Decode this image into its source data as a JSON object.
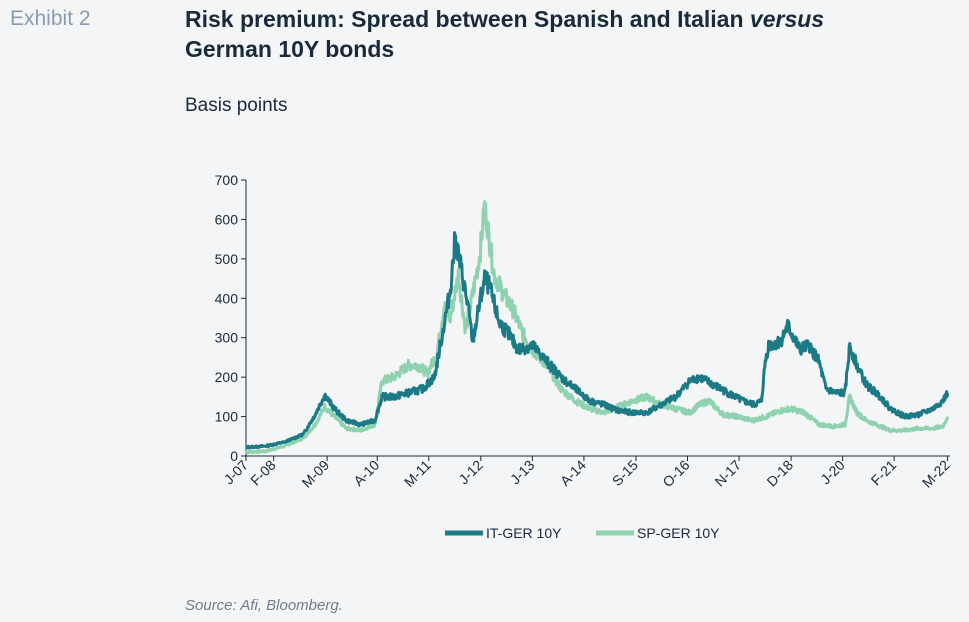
{
  "header": {
    "exhibit": "Exhibit 2",
    "title_main": "Risk premium: Spread between Spanish and Italian ",
    "title_italic": "versus",
    "title_end": "German 10Y bonds",
    "subtitle": "Basis points"
  },
  "source": "Source: Afi, Bloomberg.",
  "colors": {
    "it": "#1b7a86",
    "sp": "#8ed2b0",
    "axis": "#1a2a3c"
  },
  "chart_data": {
    "type": "line",
    "title": "Risk premium: Spread between Spanish and Italian versus German 10Y bonds",
    "ylabel": "Basis points",
    "ylim": [
      0,
      700
    ],
    "yticks": [
      0,
      100,
      200,
      300,
      400,
      500,
      600,
      700
    ],
    "xlim": [
      2007.5,
      2022.25
    ],
    "xticks": [
      {
        "label": "J-07",
        "x": 2007.5
      },
      {
        "label": "F-08",
        "x": 2008.08
      },
      {
        "label": "M-09",
        "x": 2009.2
      },
      {
        "label": "A-10",
        "x": 2010.25
      },
      {
        "label": "M-11",
        "x": 2011.33
      },
      {
        "label": "J-12",
        "x": 2012.42
      },
      {
        "label": "J-13",
        "x": 2013.5
      },
      {
        "label": "A-14",
        "x": 2014.58
      },
      {
        "label": "S-15",
        "x": 2015.67
      },
      {
        "label": "O-16",
        "x": 2016.75
      },
      {
        "label": "N-17",
        "x": 2017.83
      },
      {
        "label": "D-18",
        "x": 2018.92
      },
      {
        "label": "J-20",
        "x": 2020.0
      },
      {
        "label": "F-21",
        "x": 2021.08
      },
      {
        "label": "M-22",
        "x": 2022.2
      }
    ],
    "legend_position": "bottom",
    "series": [
      {
        "name": "IT-GER 10Y",
        "points": [
          [
            2007.5,
            22
          ],
          [
            2007.9,
            25
          ],
          [
            2008.3,
            35
          ],
          [
            2008.7,
            55
          ],
          [
            2008.95,
            105
          ],
          [
            2009.15,
            155
          ],
          [
            2009.35,
            120
          ],
          [
            2009.6,
            90
          ],
          [
            2009.9,
            80
          ],
          [
            2010.2,
            90
          ],
          [
            2010.35,
            150
          ],
          [
            2010.6,
            150
          ],
          [
            2010.9,
            160
          ],
          [
            2011.2,
            170
          ],
          [
            2011.45,
            200
          ],
          [
            2011.6,
            300
          ],
          [
            2011.78,
            420
          ],
          [
            2011.88,
            550
          ],
          [
            2012.0,
            480
          ],
          [
            2012.15,
            380
          ],
          [
            2012.25,
            290
          ],
          [
            2012.4,
            390
          ],
          [
            2012.5,
            450
          ],
          [
            2012.6,
            430
          ],
          [
            2012.8,
            340
          ],
          [
            2013.0,
            310
          ],
          [
            2013.2,
            270
          ],
          [
            2013.5,
            280
          ],
          [
            2013.8,
            240
          ],
          [
            2014.1,
            200
          ],
          [
            2014.4,
            170
          ],
          [
            2014.7,
            140
          ],
          [
            2015.0,
            130
          ],
          [
            2015.3,
            115
          ],
          [
            2015.6,
            110
          ],
          [
            2015.9,
            110
          ],
          [
            2016.2,
            130
          ],
          [
            2016.5,
            150
          ],
          [
            2016.8,
            190
          ],
          [
            2017.0,
            200
          ],
          [
            2017.3,
            180
          ],
          [
            2017.6,
            160
          ],
          [
            2017.9,
            140
          ],
          [
            2018.15,
            130
          ],
          [
            2018.3,
            140
          ],
          [
            2018.38,
            240
          ],
          [
            2018.45,
            280
          ],
          [
            2018.7,
            290
          ],
          [
            2018.85,
            330
          ],
          [
            2019.1,
            270
          ],
          [
            2019.3,
            280
          ],
          [
            2019.5,
            240
          ],
          [
            2019.65,
            170
          ],
          [
            2019.85,
            160
          ],
          [
            2020.05,
            160
          ],
          [
            2020.15,
            280
          ],
          [
            2020.3,
            230
          ],
          [
            2020.5,
            180
          ],
          [
            2020.8,
            150
          ],
          [
            2021.0,
            120
          ],
          [
            2021.3,
            100
          ],
          [
            2021.6,
            105
          ],
          [
            2021.9,
            120
          ],
          [
            2022.1,
            140
          ],
          [
            2022.2,
            160
          ]
        ]
      },
      {
        "name": "SP-GER 10Y",
        "points": [
          [
            2007.5,
            10
          ],
          [
            2007.9,
            12
          ],
          [
            2008.3,
            25
          ],
          [
            2008.7,
            45
          ],
          [
            2008.95,
            80
          ],
          [
            2009.15,
            125
          ],
          [
            2009.35,
            100
          ],
          [
            2009.6,
            70
          ],
          [
            2009.9,
            65
          ],
          [
            2010.2,
            80
          ],
          [
            2010.35,
            190
          ],
          [
            2010.6,
            200
          ],
          [
            2010.9,
            230
          ],
          [
            2011.1,
            230
          ],
          [
            2011.3,
            210
          ],
          [
            2011.5,
            260
          ],
          [
            2011.65,
            380
          ],
          [
            2011.78,
            350
          ],
          [
            2011.95,
            460
          ],
          [
            2012.1,
            320
          ],
          [
            2012.25,
            410
          ],
          [
            2012.4,
            510
          ],
          [
            2012.5,
            635
          ],
          [
            2012.7,
            460
          ],
          [
            2012.9,
            410
          ],
          [
            2013.1,
            370
          ],
          [
            2013.3,
            310
          ],
          [
            2013.5,
            270
          ],
          [
            2013.8,
            230
          ],
          [
            2014.1,
            170
          ],
          [
            2014.4,
            140
          ],
          [
            2014.7,
            120
          ],
          [
            2015.0,
            110
          ],
          [
            2015.3,
            125
          ],
          [
            2015.6,
            140
          ],
          [
            2015.9,
            150
          ],
          [
            2016.2,
            130
          ],
          [
            2016.5,
            120
          ],
          [
            2016.8,
            110
          ],
          [
            2017.0,
            130
          ],
          [
            2017.2,
            140
          ],
          [
            2017.5,
            105
          ],
          [
            2017.8,
            100
          ],
          [
            2018.1,
            90
          ],
          [
            2018.4,
            100
          ],
          [
            2018.7,
            115
          ],
          [
            2018.9,
            120
          ],
          [
            2019.2,
            110
          ],
          [
            2019.5,
            80
          ],
          [
            2019.8,
            75
          ],
          [
            2020.05,
            80
          ],
          [
            2020.15,
            150
          ],
          [
            2020.3,
            110
          ],
          [
            2020.5,
            90
          ],
          [
            2020.8,
            75
          ],
          [
            2021.0,
            65
          ],
          [
            2021.3,
            65
          ],
          [
            2021.6,
            70
          ],
          [
            2021.9,
            70
          ],
          [
            2022.1,
            75
          ],
          [
            2022.2,
            100
          ]
        ]
      }
    ]
  }
}
